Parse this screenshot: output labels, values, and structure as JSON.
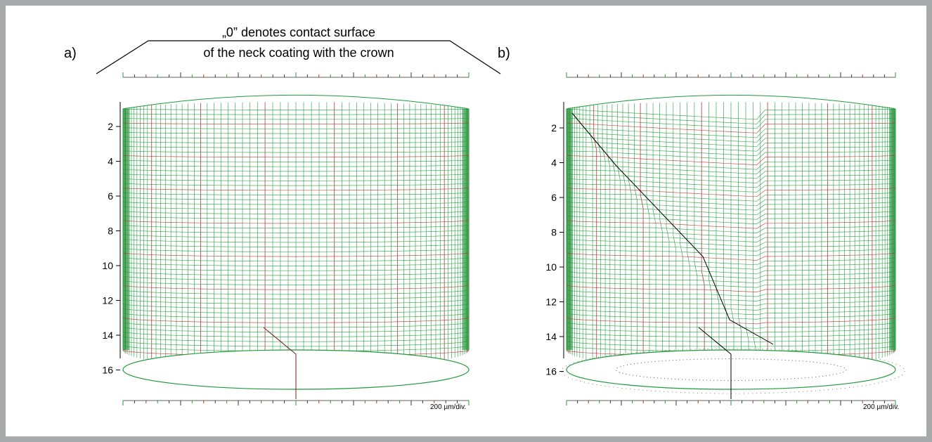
{
  "annotation": {
    "line1": "„0” denotes contact surface",
    "line2": "of the neck coating with the crown"
  },
  "panels": [
    {
      "label": "a)",
      "depth_ticks": [
        "2",
        "4",
        "6",
        "8",
        "10",
        "12",
        "14",
        "16"
      ],
      "scale_label": "200 µm/div.",
      "variant": "intact"
    },
    {
      "label": "b)",
      "depth_ticks": [
        "2",
        "4",
        "6",
        "8",
        "10",
        "12",
        "14",
        "16"
      ],
      "scale_label": "200 µm/div.",
      "variant": "damaged"
    }
  ],
  "colors": {
    "frame": "#a8aaac",
    "mesh_green": "#1f9a3c",
    "mesh_red": "#b0302c",
    "text": "#000000"
  }
}
